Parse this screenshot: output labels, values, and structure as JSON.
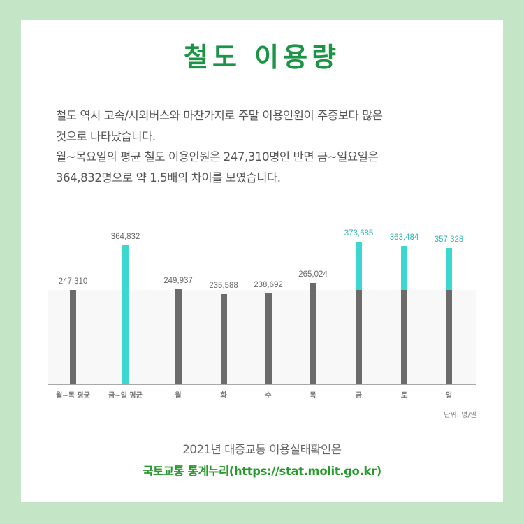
{
  "title": "철도 이용량",
  "description": {
    "line1": "철도 역시 고속/시외버스와 마찬가지로 주말 이용인원이 주중보다 많은",
    "line2": "것으로 나타났습니다.",
    "line3": "월~목요일의 평균 철도 이용인원은 247,310명인 반면 금~일요일은",
    "line4": "364,832명으로 약 1.5배의 차이를 보였습니다."
  },
  "colors": {
    "title_green": "#1c9446",
    "bar_gray": "#6b6b6b",
    "bar_teal": "#3ad8d0",
    "label_teal": "#2fb8b0",
    "background": "#c4e5c6"
  },
  "chart_data": {
    "type": "bar",
    "title": "철도 이용량",
    "xlabel": "",
    "ylabel": "",
    "unit": "단위: 명/일",
    "categories": [
      "월~목 평균",
      "금~일 평균",
      "월",
      "화",
      "수",
      "목",
      "금",
      "토",
      "일"
    ],
    "values": [
      247310,
      364832,
      249937,
      235588,
      238692,
      265024,
      373685,
      363484,
      357328
    ],
    "value_labels": [
      "247,310",
      "364,832",
      "249,937",
      "235,588",
      "238,692",
      "265,024",
      "373,685",
      "363,484",
      "357,328"
    ],
    "highlighted": [
      false,
      true,
      false,
      false,
      false,
      false,
      true,
      true,
      true
    ],
    "reference_line": 247310,
    "grid": false,
    "legend": null
  },
  "chart": {
    "unit_label": "단위: 명/일"
  },
  "footer": {
    "line1": "2021년 대중교통 이용실태확인은",
    "line2": "국토교통 통계누리(https://stat.molit.go.kr)"
  }
}
